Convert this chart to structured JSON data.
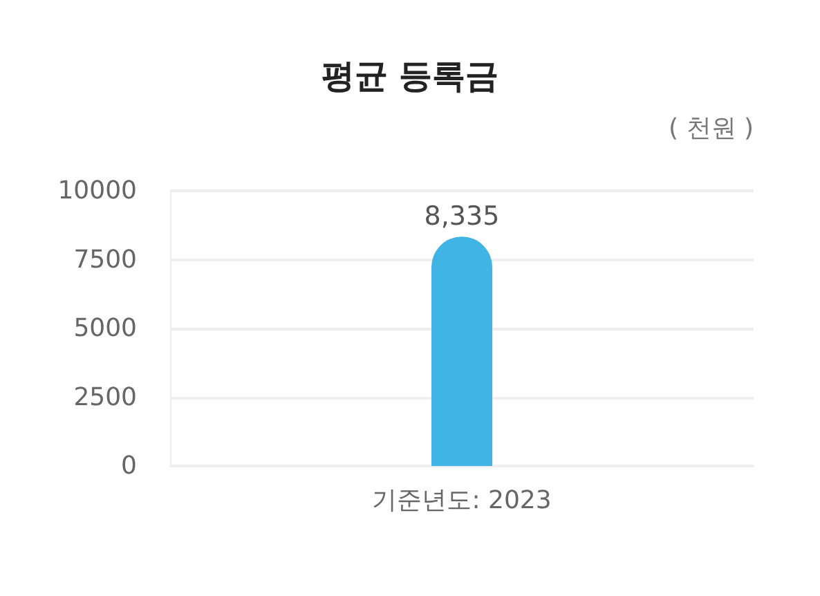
{
  "chart_data": {
    "type": "bar",
    "title": "평균 등록금",
    "annotations": [
      "( 천원 )"
    ],
    "categories": [
      "기준년도: 2023"
    ],
    "values": [
      8335
    ],
    "value_labels": [
      "8,335"
    ],
    "color": "#41b4e6",
    "ylim": [
      0,
      10000
    ],
    "yticks": [
      0,
      2500,
      5000,
      7500,
      10000
    ],
    "grid": "y"
  }
}
